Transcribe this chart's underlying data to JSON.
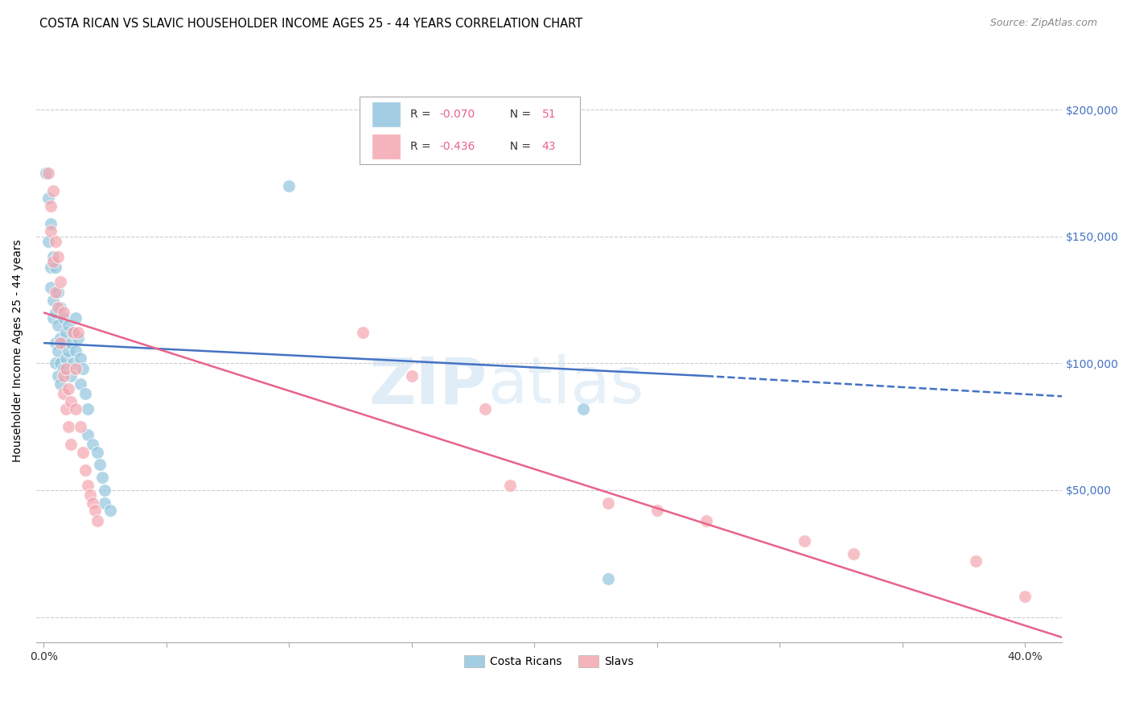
{
  "title": "COSTA RICAN VS SLAVIC HOUSEHOLDER INCOME AGES 25 - 44 YEARS CORRELATION CHART",
  "source": "Source: ZipAtlas.com",
  "ylabel": "Householder Income Ages 25 - 44 years",
  "ylim": [
    -10000,
    220000
  ],
  "xlim": [
    -0.003,
    0.415
  ],
  "ytick_vals": [
    0,
    50000,
    100000,
    150000,
    200000
  ],
  "ytick_labels": [
    "",
    "$50,000",
    "$100,000",
    "$150,000",
    "$200,000"
  ],
  "blue_color": "#92c5de",
  "pink_color": "#f4a6b0",
  "blue_scatter": [
    [
      0.001,
      175000
    ],
    [
      0.002,
      165000
    ],
    [
      0.002,
      148000
    ],
    [
      0.003,
      155000
    ],
    [
      0.003,
      138000
    ],
    [
      0.003,
      130000
    ],
    [
      0.004,
      142000
    ],
    [
      0.004,
      125000
    ],
    [
      0.004,
      118000
    ],
    [
      0.005,
      138000
    ],
    [
      0.005,
      120000
    ],
    [
      0.005,
      108000
    ],
    [
      0.005,
      100000
    ],
    [
      0.006,
      128000
    ],
    [
      0.006,
      115000
    ],
    [
      0.006,
      105000
    ],
    [
      0.006,
      95000
    ],
    [
      0.007,
      122000
    ],
    [
      0.007,
      110000
    ],
    [
      0.007,
      100000
    ],
    [
      0.007,
      92000
    ],
    [
      0.008,
      118000
    ],
    [
      0.008,
      108000
    ],
    [
      0.008,
      98000
    ],
    [
      0.009,
      112000
    ],
    [
      0.009,
      102000
    ],
    [
      0.01,
      115000
    ],
    [
      0.01,
      105000
    ],
    [
      0.011,
      108000
    ],
    [
      0.011,
      95000
    ],
    [
      0.012,
      112000
    ],
    [
      0.012,
      100000
    ],
    [
      0.013,
      118000
    ],
    [
      0.013,
      105000
    ],
    [
      0.014,
      110000
    ],
    [
      0.015,
      102000
    ],
    [
      0.015,
      92000
    ],
    [
      0.016,
      98000
    ],
    [
      0.017,
      88000
    ],
    [
      0.018,
      82000
    ],
    [
      0.018,
      72000
    ],
    [
      0.02,
      68000
    ],
    [
      0.022,
      65000
    ],
    [
      0.023,
      60000
    ],
    [
      0.024,
      55000
    ],
    [
      0.025,
      50000
    ],
    [
      0.025,
      45000
    ],
    [
      0.027,
      42000
    ],
    [
      0.1,
      170000
    ],
    [
      0.22,
      82000
    ],
    [
      0.23,
      15000
    ]
  ],
  "pink_scatter": [
    [
      0.002,
      175000
    ],
    [
      0.003,
      162000
    ],
    [
      0.003,
      152000
    ],
    [
      0.004,
      168000
    ],
    [
      0.004,
      140000
    ],
    [
      0.005,
      148000
    ],
    [
      0.005,
      128000
    ],
    [
      0.006,
      142000
    ],
    [
      0.006,
      122000
    ],
    [
      0.007,
      132000
    ],
    [
      0.007,
      108000
    ],
    [
      0.008,
      120000
    ],
    [
      0.008,
      95000
    ],
    [
      0.008,
      88000
    ],
    [
      0.009,
      98000
    ],
    [
      0.009,
      82000
    ],
    [
      0.01,
      90000
    ],
    [
      0.01,
      75000
    ],
    [
      0.011,
      85000
    ],
    [
      0.011,
      68000
    ],
    [
      0.012,
      112000
    ],
    [
      0.013,
      98000
    ],
    [
      0.013,
      82000
    ],
    [
      0.014,
      112000
    ],
    [
      0.015,
      75000
    ],
    [
      0.016,
      65000
    ],
    [
      0.017,
      58000
    ],
    [
      0.018,
      52000
    ],
    [
      0.019,
      48000
    ],
    [
      0.02,
      45000
    ],
    [
      0.021,
      42000
    ],
    [
      0.022,
      38000
    ],
    [
      0.13,
      112000
    ],
    [
      0.15,
      95000
    ],
    [
      0.18,
      82000
    ],
    [
      0.19,
      52000
    ],
    [
      0.23,
      45000
    ],
    [
      0.25,
      42000
    ],
    [
      0.27,
      38000
    ],
    [
      0.31,
      30000
    ],
    [
      0.33,
      25000
    ],
    [
      0.38,
      22000
    ],
    [
      0.4,
      8000
    ]
  ],
  "blue_line": {
    "x0": 0.0,
    "y0": 108000,
    "x1": 0.27,
    "y1": 95000,
    "xd0": 0.27,
    "yd0": 95000,
    "xd1": 0.415,
    "yd1": 87000
  },
  "pink_line": {
    "x0": 0.0,
    "y0": 120000,
    "x1": 0.415,
    "y1": -8000
  },
  "watermark_zip": "ZIP",
  "watermark_atlas": "atlas",
  "legend_box_blue_r": "R = -0.070",
  "legend_box_blue_n": "N = 51",
  "legend_box_pink_r": "R = -0.436",
  "legend_box_pink_n": "N = 43"
}
